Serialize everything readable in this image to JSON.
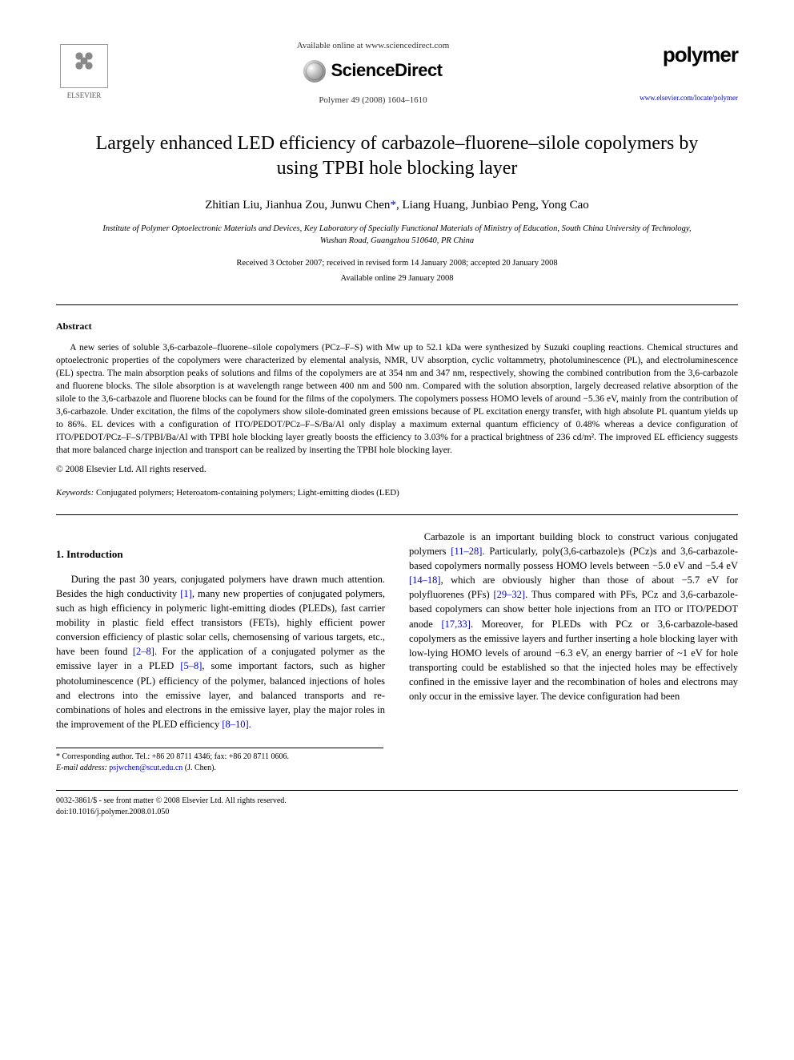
{
  "header": {
    "available_online": "Available online at www.sciencedirect.com",
    "sciencedirect": "ScienceDirect",
    "journal_ref": "Polymer 49 (2008) 1604–1610",
    "elsevier_label": "ELSEVIER",
    "polymer_label": "polymer",
    "polymer_url": "www.elsevier.com/locate/polymer"
  },
  "title": "Largely enhanced LED efficiency of carbazole–fluorene–silole copolymers by using TPBI hole blocking layer",
  "authors": {
    "list": "Zhitian Liu, Jianhua Zou, Junwu Chen",
    "corr_marker": "*",
    "rest": ", Liang Huang, Junbiao Peng, Yong Cao"
  },
  "affiliation": "Institute of Polymer Optoelectronic Materials and Devices, Key Laboratory of Specially Functional Materials of Ministry of Education, South China University of Technology, Wushan Road, Guangzhou 510640, PR China",
  "dates": {
    "received": "Received 3 October 2007; received in revised form 14 January 2008; accepted 20 January 2008",
    "online": "Available online 29 January 2008"
  },
  "abstract": {
    "heading": "Abstract",
    "body": "A new series of soluble 3,6-carbazole–fluorene–silole copolymers (PCz–F–S) with Mw up to 52.1 kDa were synthesized by Suzuki coupling reactions. Chemical structures and optoelectronic properties of the copolymers were characterized by elemental analysis, NMR, UV absorption, cyclic voltammetry, photoluminescence (PL), and electroluminescence (EL) spectra. The main absorption peaks of solutions and films of the copolymers are at 354 nm and 347 nm, respectively, showing the combined contribution from the 3,6-carbazole and fluorene blocks. The silole absorption is at wavelength range between 400 nm and 500 nm. Compared with the solution absorption, largely decreased relative absorption of the silole to the 3,6-carbazole and fluorene blocks can be found for the films of the copolymers. The copolymers possess HOMO levels of around −5.36 eV, mainly from the contribution of 3,6-carbazole. Under excitation, the films of the copolymers show silole-dominated green emissions because of PL excitation energy transfer, with high absolute PL quantum yields up to 86%. EL devices with a configuration of ITO/PEDOT/PCz–F–S/Ba/Al only display a maximum external quantum efficiency of 0.48% whereas a device configuration of ITO/PEDOT/PCz–F–S/TPBI/Ba/Al with TPBI hole blocking layer greatly boosts the efficiency to 3.03% for a practical brightness of 236 cd/m². The improved EL efficiency suggests that more balanced charge injection and transport can be realized by inserting the TPBI hole blocking layer.",
    "copyright": "© 2008 Elsevier Ltd. All rights reserved."
  },
  "keywords": {
    "label": "Keywords:",
    "text": " Conjugated polymers; Heteroatom-containing polymers; Light-emitting diodes (LED)"
  },
  "intro": {
    "heading": "1. Introduction",
    "p1a": "During the past 30 years, conjugated polymers have drawn much attention. Besides the high conductivity ",
    "r1": "[1]",
    "p1b": ", many new properties of conjugated polymers, such as high efficiency in polymeric light-emitting diodes (PLEDs), fast carrier mobility in plastic field effect transistors (FETs), highly efficient power conversion efficiency of plastic solar cells, chemosensing of various targets, etc., have been found ",
    "r2": "[2–8]",
    "p1c": ". For the application of a conjugated polymer as the emissive layer in a PLED ",
    "r3": "[5–8]",
    "p1d": ", some important factors, such as higher photoluminescence (PL) efficiency of the polymer, balanced injections of holes and electrons into the emissive layer, and balanced transports and re-combinations of holes and electrons in the emissive layer, play the major roles in the improvement of the PLED efficiency ",
    "r4": "[8–10]",
    "p1e": ".",
    "p2a": "Carbazole is an important building block to construct various conjugated polymers ",
    "r5": "[11–28]",
    "p2b": ". Particularly, poly(3,6-carbazole)s (PCz)s and 3,6-carbazole-based copolymers normally possess HOMO levels between −5.0 eV and −5.4 eV ",
    "r6": "[14–18]",
    "p2c": ", which are obviously higher than those of about −5.7 eV for polyfluorenes (PFs) ",
    "r7": "[29–32]",
    "p2d": ". Thus compared with PFs, PCz and 3,6-carbazole-based copolymers can show better hole injections from an ITO or ITO/PEDOT anode ",
    "r8": "[17,33]",
    "p2e": ". Moreover, for PLEDs with PCz or 3,6-carbazole-based copolymers as the emissive layers and further inserting a hole blocking layer with low-lying HOMO levels of around −6.3 eV, an energy barrier of ~1 eV for hole transporting could be established so that the injected holes may be effectively confined in the emissive layer and the recombination of holes and electrons may only occur in the emissive layer. The device configuration had been"
  },
  "corr_footer": {
    "line1": "* Corresponding author. Tel.: +86 20 8711 4346; fax: +86 20 8711 0606.",
    "line2_label": "E-mail address: ",
    "email": "psjwchen@scut.edu.cn",
    "line2_tail": " (J. Chen)."
  },
  "footer": {
    "left1": "0032-3861/$ - see front matter © 2008 Elsevier Ltd. All rights reserved.",
    "left2": "doi:10.1016/j.polymer.2008.01.050"
  },
  "colors": {
    "link": "#0000cc",
    "text": "#000000",
    "background": "#ffffff"
  },
  "typography": {
    "title_fontsize": 24,
    "authors_fontsize": 15,
    "body_fontsize": 12.5,
    "abstract_fontsize": 11.5,
    "footer_fontsize": 10
  }
}
